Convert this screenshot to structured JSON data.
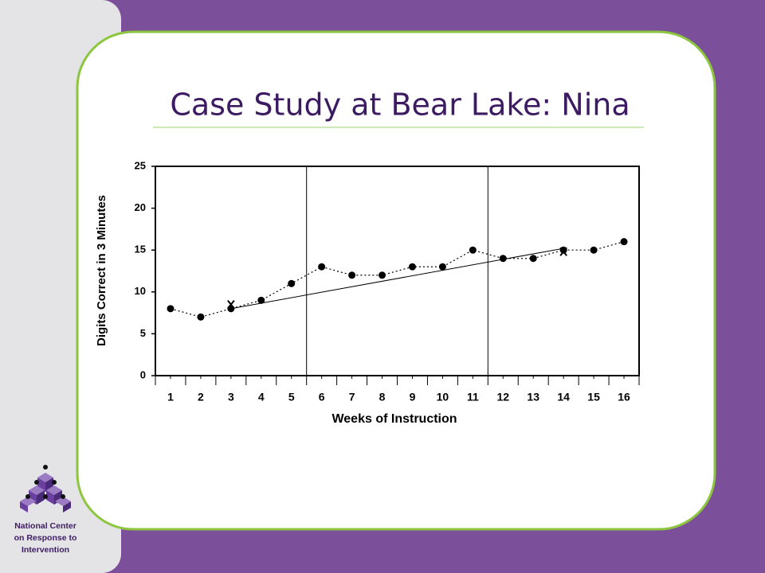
{
  "title": "Case Study at Bear Lake: Nina",
  "logo_text": [
    "National Center",
    "on Response to",
    "Intervention"
  ],
  "chart_data": {
    "type": "line",
    "x_label": "Weeks of Instruction",
    "y_label": "Digits Correct in 3 Minutes",
    "x": [
      1,
      2,
      3,
      4,
      5,
      6,
      7,
      8,
      9,
      10,
      11,
      12,
      13,
      14,
      15,
      16
    ],
    "values": [
      8,
      7,
      8,
      9,
      11,
      13,
      12,
      12,
      13,
      13,
      15,
      14,
      14,
      15,
      15,
      16
    ],
    "color": "#000000",
    "xlim": [
      0.5,
      16.5
    ],
    "xticks": [
      1,
      2,
      3,
      4,
      5,
      6,
      7,
      8,
      9,
      10,
      11,
      12,
      13,
      14,
      15,
      16
    ],
    "ylim": [
      0,
      25
    ],
    "yticks": [
      0,
      5,
      10,
      15,
      20,
      25
    ],
    "phase_lines": [
      5.5,
      11.5
    ],
    "trend": {
      "x": [
        3,
        14
      ],
      "values": [
        8,
        15.2
      ]
    },
    "aim_points": {
      "x": [
        3,
        14
      ],
      "values": [
        8.5,
        14.8
      ]
    }
  }
}
